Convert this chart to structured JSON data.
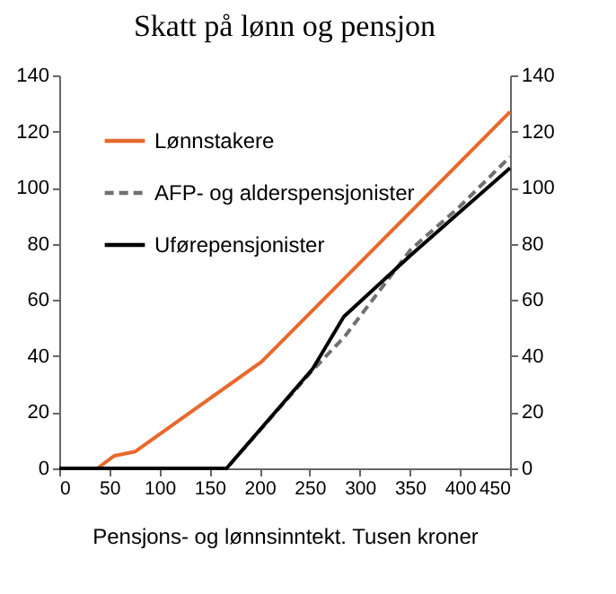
{
  "chart_data": {
    "type": "line",
    "title": "Skatt på lønn og pensjon",
    "xlabel": "Pensjons- og lønnsinntekt. Tusen kroner",
    "series": [
      {
        "name": "Lønnstakere",
        "color": "#e8692c",
        "line_style": "solid",
        "x": [
          0,
          38,
          55,
          76,
          202,
          450
        ],
        "values": [
          0,
          0,
          4.5,
          6,
          38,
          127
        ]
      },
      {
        "name": "AFP- og alderspensjonister",
        "color": "#707070",
        "line_style": "dashed",
        "x": [
          0,
          167,
          253,
          285,
          351,
          399,
          450
        ],
        "values": [
          0,
          0,
          35,
          47,
          78,
          93,
          111
        ]
      },
      {
        "name": "Uførepensjonister",
        "color": "#000000",
        "line_style": "solid",
        "axis": "y2",
        "x": [
          0,
          167,
          253,
          284,
          351,
          450
        ],
        "values": [
          0,
          0,
          35.5,
          54,
          76,
          107
        ]
      }
    ],
    "xlim": [
      0,
      450
    ],
    "xticks": [
      0,
      50,
      100,
      150,
      200,
      250,
      300,
      350,
      400,
      450
    ],
    "ylim": [
      0,
      140
    ],
    "yticks": [
      0,
      20,
      40,
      60,
      80,
      100,
      120,
      140
    ],
    "y2lim": [
      0,
      140
    ],
    "y2ticks": [
      0,
      20,
      40,
      60,
      80,
      100,
      120,
      140
    ],
    "grid": false,
    "legend": "top left"
  }
}
